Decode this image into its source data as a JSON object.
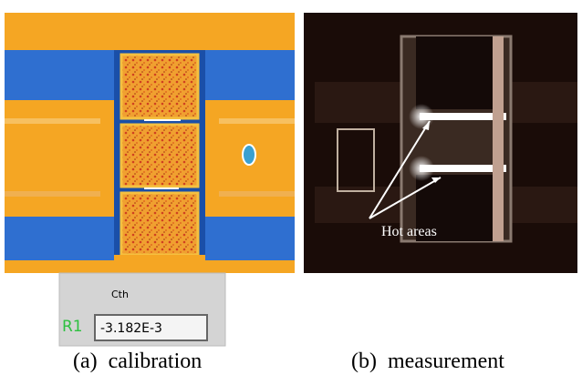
{
  "figure": {
    "panel_a": {
      "caption": "(a)  calibration",
      "widget": {
        "label": "Cth",
        "row_label": "R1",
        "value": "-3.182E-3"
      }
    },
    "panel_b": {
      "caption": "(b)  measurement",
      "annotation": "Hot areas"
    }
  }
}
